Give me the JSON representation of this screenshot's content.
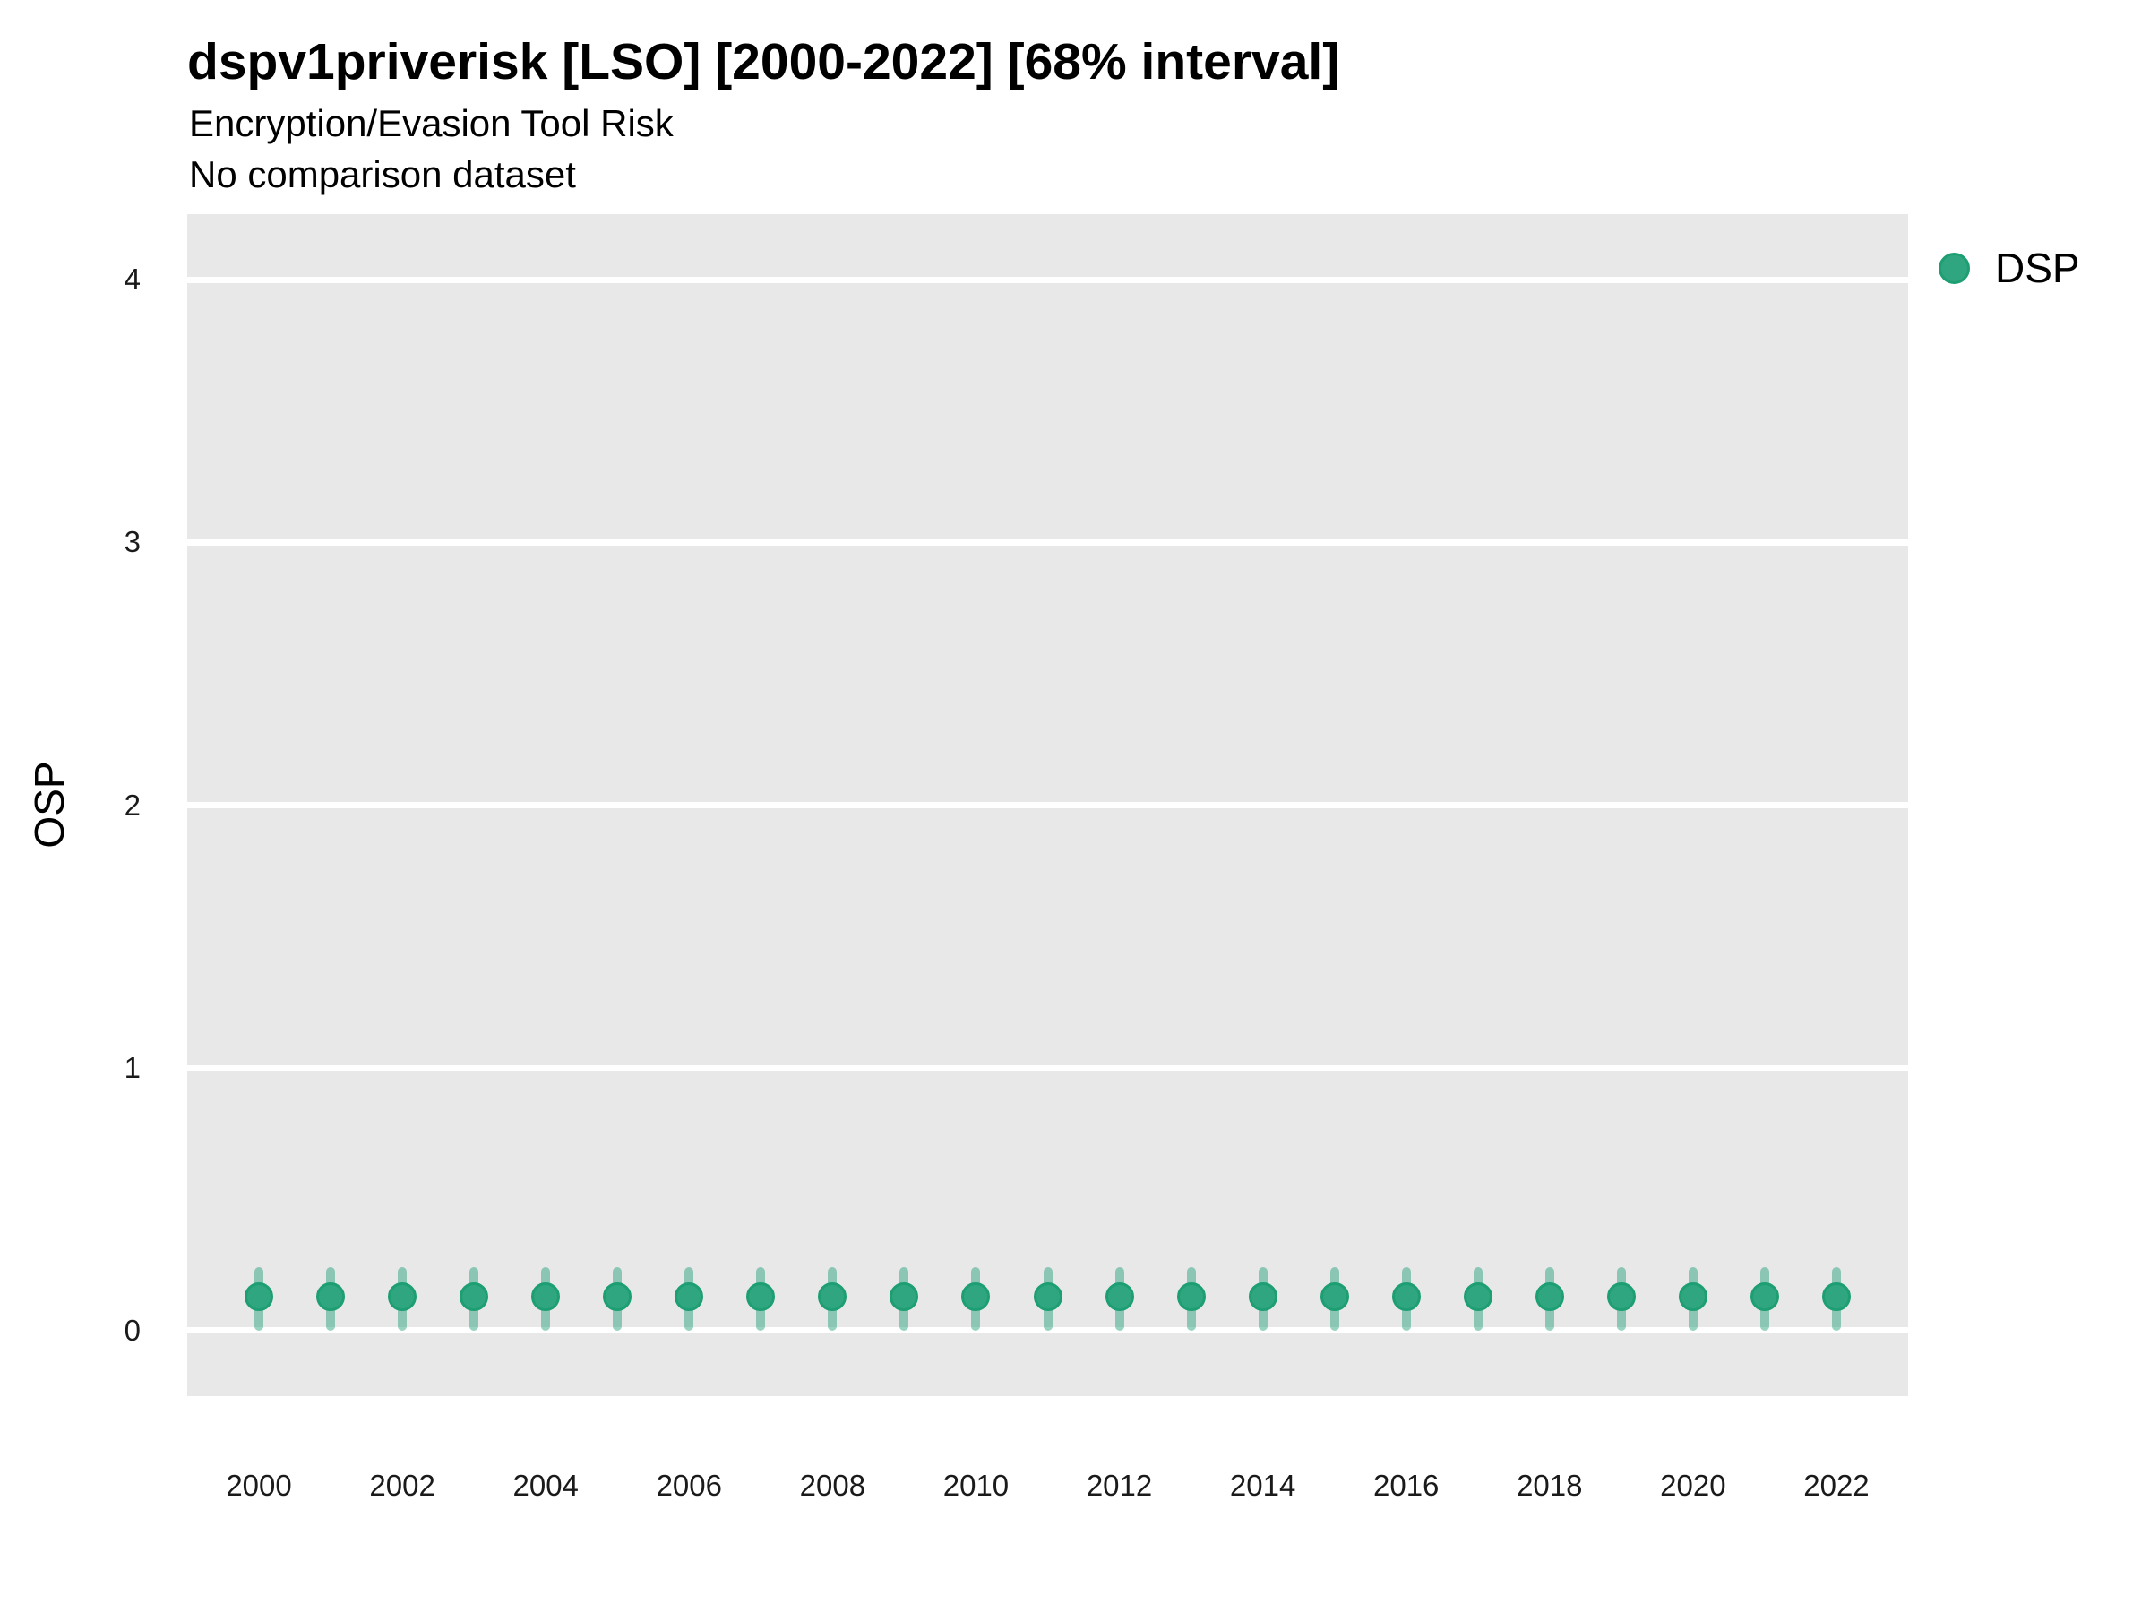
{
  "chart_data": {
    "type": "scatter",
    "variant": "pointrange",
    "title": "dspv1priverisk [LSO] [2000-2022] [68% interval]",
    "subtitle": "Encryption/Evasion Tool Risk",
    "note": "No comparison dataset",
    "xlabel": "",
    "ylabel": "OSP",
    "ylim": [
      -0.25,
      4.25
    ],
    "yticks": [
      0,
      1,
      2,
      3,
      4
    ],
    "xlim": [
      1999,
      2023
    ],
    "xticks": [
      2000,
      2002,
      2004,
      2006,
      2008,
      2010,
      2012,
      2014,
      2016,
      2018,
      2020,
      2022
    ],
    "grid": "horizontal-major-only",
    "legend_position": "right",
    "x": [
      2000,
      2001,
      2002,
      2003,
      2004,
      2005,
      2006,
      2007,
      2008,
      2009,
      2010,
      2011,
      2012,
      2013,
      2014,
      2015,
      2016,
      2017,
      2018,
      2019,
      2020,
      2021,
      2022
    ],
    "series": [
      {
        "name": "DSP",
        "values": [
          0.13,
          0.13,
          0.13,
          0.13,
          0.13,
          0.13,
          0.13,
          0.13,
          0.13,
          0.13,
          0.13,
          0.13,
          0.13,
          0.13,
          0.13,
          0.13,
          0.13,
          0.13,
          0.13,
          0.13,
          0.13,
          0.13,
          0.13
        ],
        "lower": [
          0.0,
          0.0,
          0.0,
          0.0,
          0.0,
          0.0,
          0.0,
          0.0,
          0.0,
          0.0,
          0.0,
          0.0,
          0.0,
          0.0,
          0.0,
          0.0,
          0.0,
          0.0,
          0.0,
          0.0,
          0.0,
          0.0,
          0.0
        ],
        "upper": [
          0.24,
          0.24,
          0.24,
          0.24,
          0.24,
          0.24,
          0.24,
          0.24,
          0.24,
          0.24,
          0.24,
          0.24,
          0.24,
          0.24,
          0.24,
          0.24,
          0.24,
          0.24,
          0.24,
          0.24,
          0.24,
          0.24,
          0.24
        ]
      }
    ]
  },
  "colors": {
    "point_fill": "#2FA67F",
    "point_border": "#1E9E73",
    "interval": "rgba(27,158,119,0.45)",
    "panel_background": "#E8E8E8",
    "gridline": "#FFFFFF",
    "series_base": "#1B9E77"
  }
}
